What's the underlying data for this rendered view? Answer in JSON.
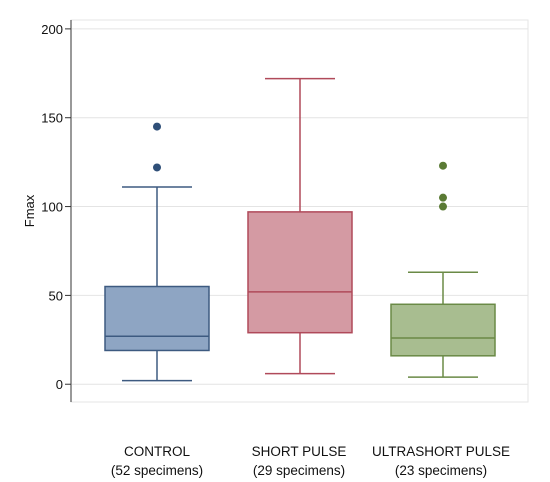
{
  "chart_data": {
    "type": "box",
    "ylabel": "Fmax",
    "xlabel": "",
    "ylim": [
      -10,
      205
    ],
    "yticks": [
      0,
      50,
      100,
      150,
      200
    ],
    "grid": true,
    "legend": "none",
    "categories": [
      {
        "name": "CONTROL",
        "note": "(52 specimens)"
      },
      {
        "name": "SHORT PULSE",
        "note": "(29 specimens)"
      },
      {
        "name": "ULTRASHORT PULSE",
        "note": "(23 specimens)"
      }
    ],
    "boxes": [
      {
        "whisker_low": 2,
        "q1": 19,
        "median": 27,
        "q3": 55,
        "whisker_high": 111,
        "outliers": [
          122,
          145
        ]
      },
      {
        "whisker_low": 6,
        "q1": 29,
        "median": 52,
        "q3": 97,
        "whisker_high": 172,
        "outliers": []
      },
      {
        "whisker_low": 4,
        "q1": 16,
        "median": 26,
        "q3": 45,
        "whisker_high": 63,
        "outliers": [
          100,
          105,
          123
        ]
      }
    ]
  },
  "colors": {
    "fills": [
      "#8ea5c3",
      "#d49aa3",
      "#a8bd90"
    ],
    "strokes": [
      "#3d5a80",
      "#b04a5a",
      "#6a8a46"
    ],
    "outliers": [
      "#2f4f78",
      "#b04a5a",
      "#5a7a34"
    ]
  }
}
